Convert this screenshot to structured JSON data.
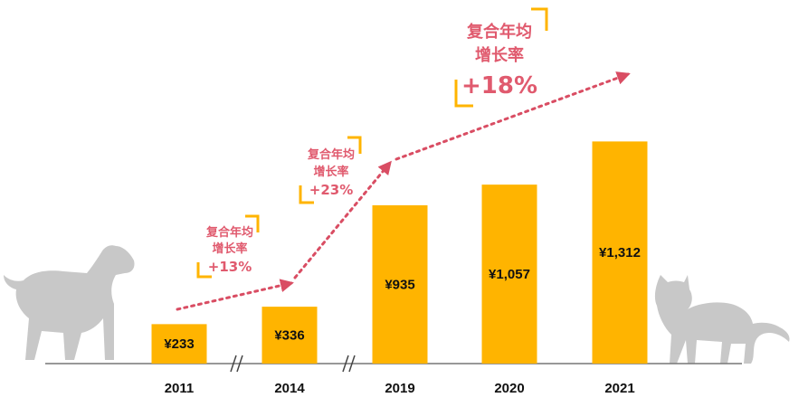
{
  "chart_data": {
    "type": "bar",
    "categories": [
      "2011",
      "2014",
      "2019",
      "2020",
      "2021"
    ],
    "values": [
      233,
      336,
      935,
      1057,
      1312
    ],
    "value_labels": [
      "¥233",
      "¥336",
      "¥935",
      "¥1,057",
      "¥1,312"
    ],
    "bar_color": "#ffb400",
    "axis_breaks": [
      "2011-2014",
      "2014-2019"
    ],
    "annotations": [
      {
        "line1": "复合年均",
        "line2": "增长率",
        "rate": "+13%",
        "period": "2011-2014"
      },
      {
        "line1": "复合年均",
        "line2": "增长率",
        "rate": "+23%",
        "period": "2014-2019"
      },
      {
        "line1": "复合年均",
        "line2": "增长率",
        "rate": "+18%",
        "period": "2019-2021"
      }
    ],
    "accent_color": "#e05a6e",
    "bracket_color": "#ffb400",
    "decorations": [
      "dog-silhouette",
      "cat-silhouette"
    ],
    "silhouette_color": "#c8c8c8"
  }
}
